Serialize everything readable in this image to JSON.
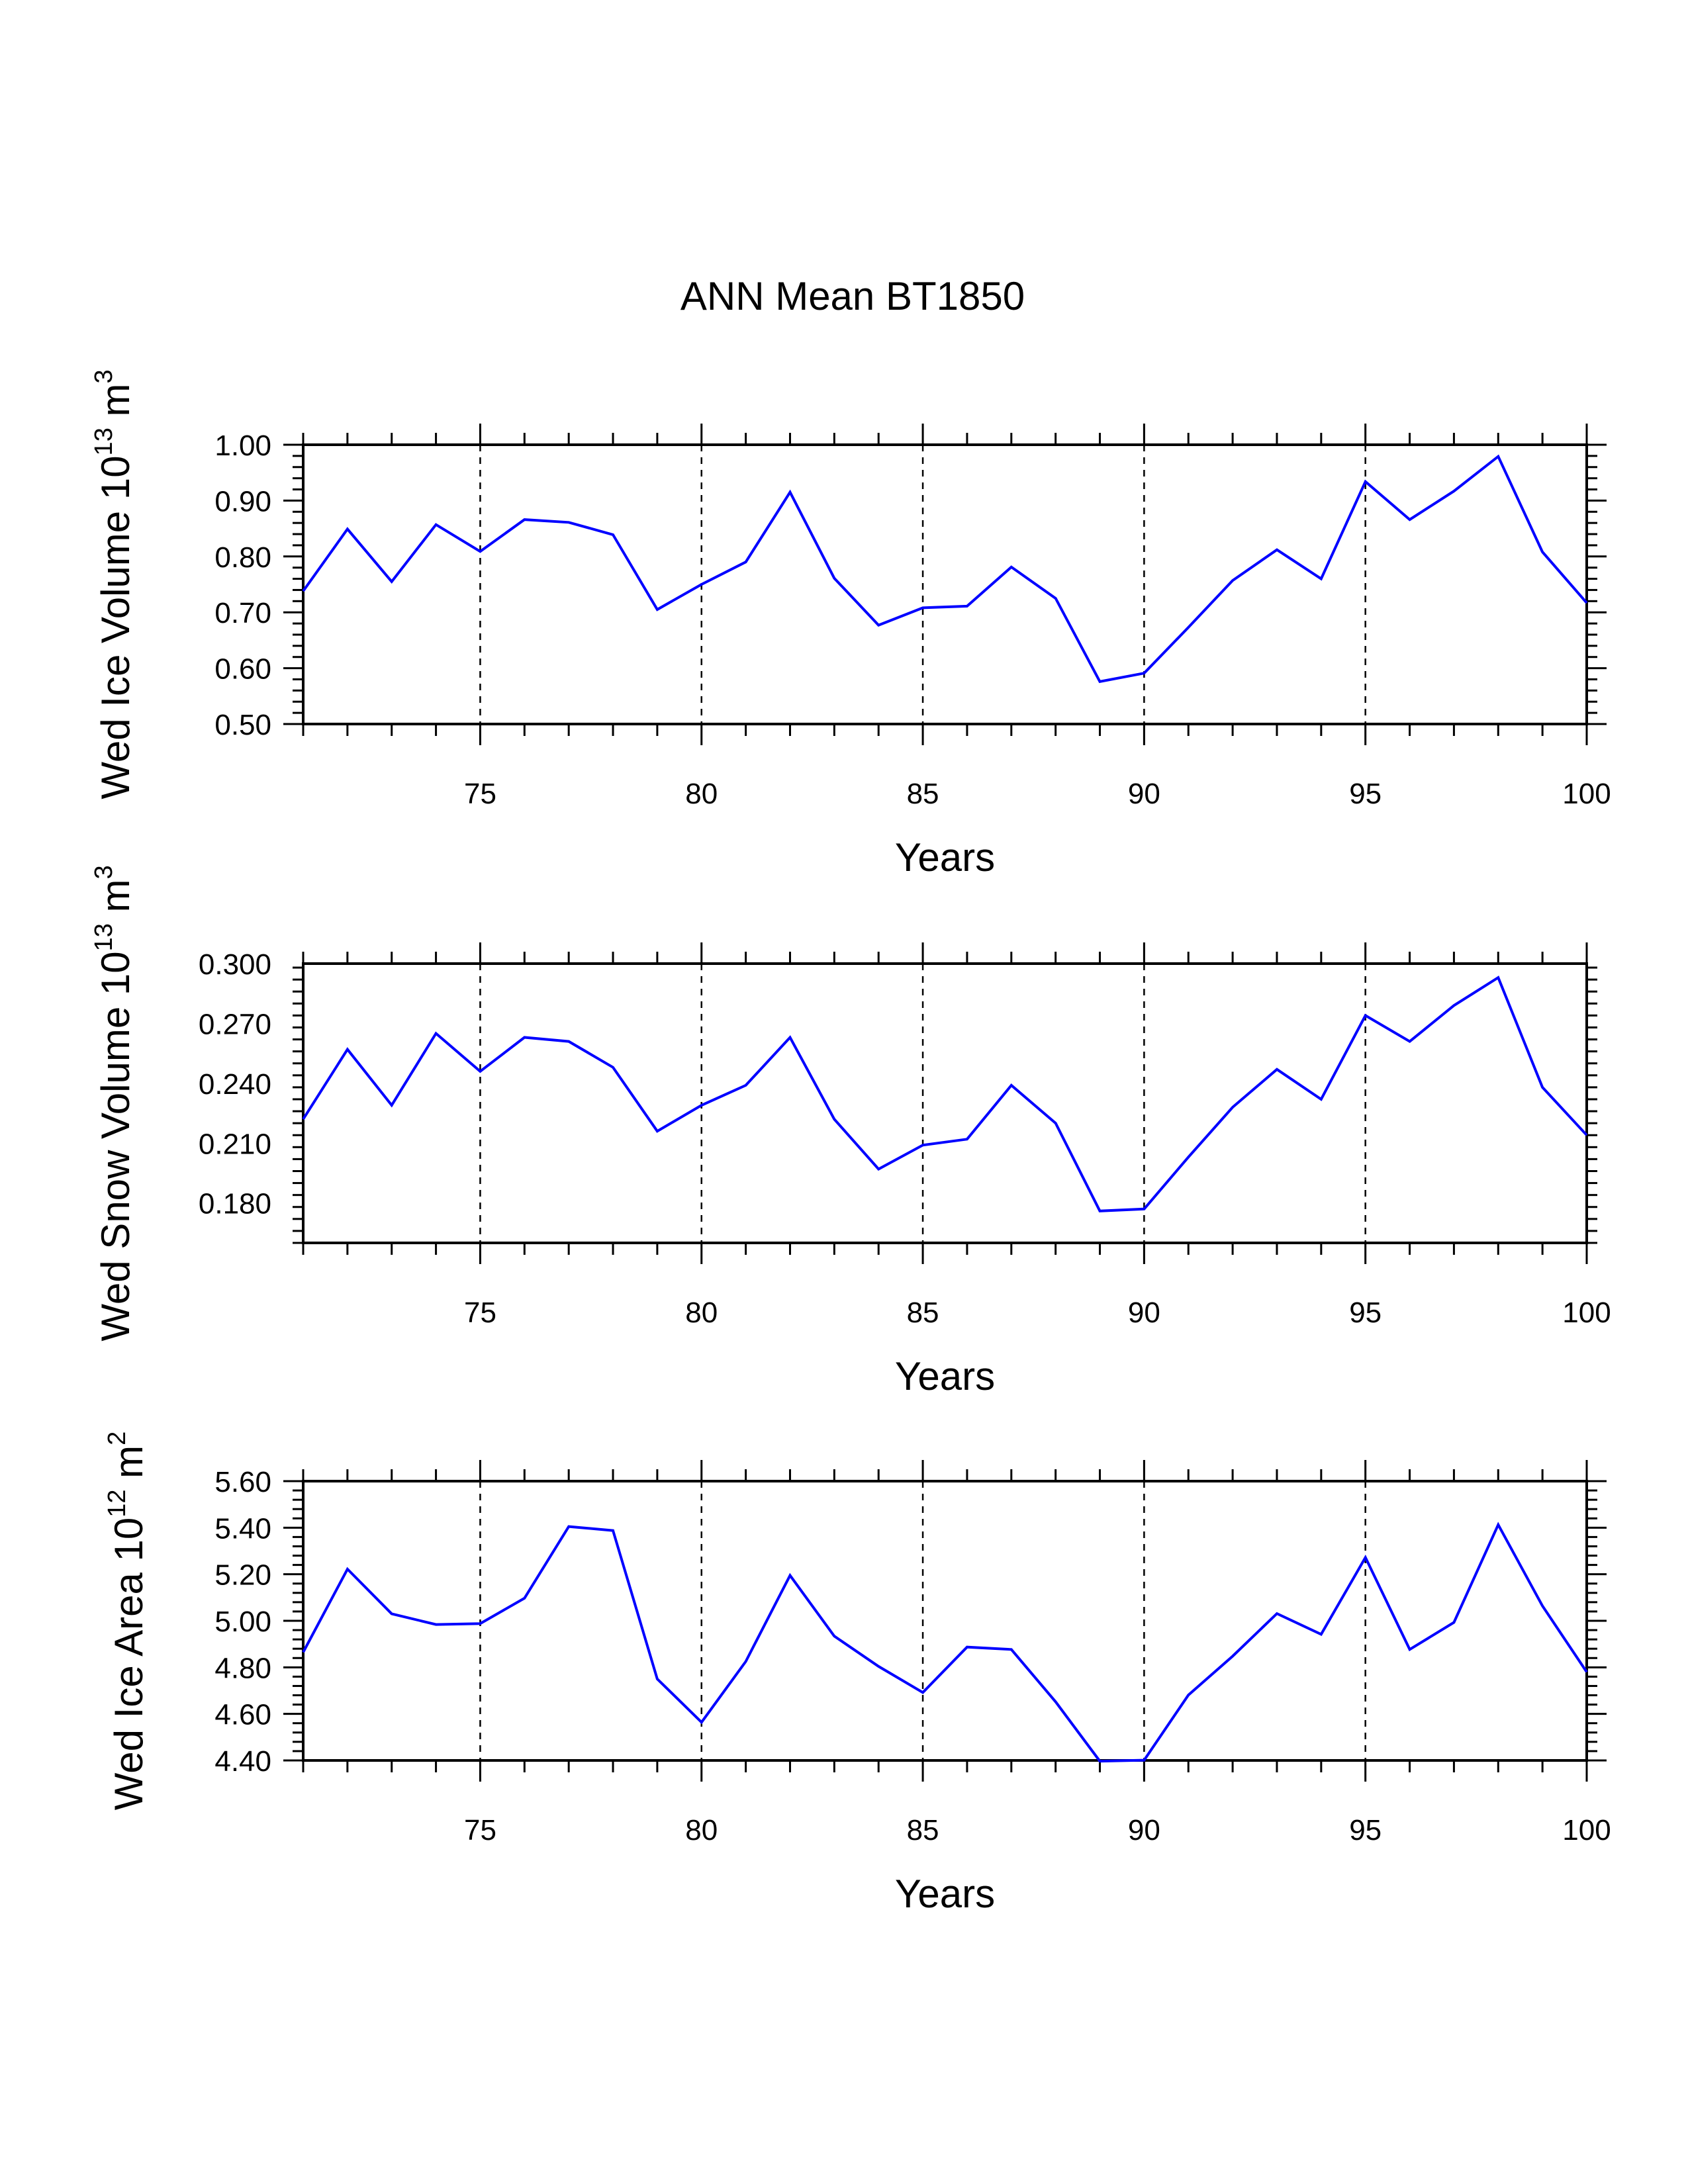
{
  "figure": {
    "title": "ANN Mean BT1850"
  },
  "colors": {
    "series": "#0000ff",
    "axis": "#000000",
    "background": "#ffffff"
  },
  "chart_data": [
    {
      "type": "line",
      "title": "ANN Mean BT1850",
      "xlabel": "Years",
      "ylabel": "Wed Ice Volume 10^13 m^3",
      "ylabel_parts": {
        "main": "Wed Ice Volume 10",
        "exp": "13",
        "unit": " m",
        "unit_exp": "3"
      },
      "xlim": [
        71,
        100
      ],
      "ylim": [
        0.5,
        1.0
      ],
      "xticks": [
        75,
        80,
        85,
        90,
        95,
        100
      ],
      "xtick_labels": [
        "75",
        "80",
        "85",
        "90",
        "95",
        "100"
      ],
      "yticks": [
        0.5,
        0.6,
        0.7,
        0.8,
        0.9,
        1.0
      ],
      "ytick_labels": [
        "0.50",
        "0.60",
        "0.70",
        "0.80",
        "0.90",
        "1.00"
      ],
      "grid": "vertical dashed lines at major x ticks",
      "series": [
        {
          "color": "#0000ff",
          "x": [
            71,
            72,
            73,
            74,
            75,
            76,
            77,
            78,
            79,
            80,
            81,
            82,
            83,
            84,
            85,
            86,
            87,
            88,
            89,
            90,
            91,
            92,
            93,
            94,
            95,
            96,
            97,
            98,
            99,
            100
          ],
          "y": [
            0.738,
            0.849,
            0.755,
            0.857,
            0.809,
            0.866,
            0.861,
            0.839,
            0.705,
            0.75,
            0.79,
            0.915,
            0.761,
            0.677,
            0.708,
            0.711,
            0.781,
            0.725,
            0.576,
            0.591,
            0.673,
            0.757,
            0.812,
            0.76,
            0.934,
            0.866,
            0.917,
            0.979,
            0.808,
            0.717
          ]
        }
      ]
    },
    {
      "type": "line",
      "xlabel": "Years",
      "ylabel": "Wed Snow Volume 10^13 m^3",
      "ylabel_parts": {
        "main": "Wed Snow Volume 10",
        "exp": "13",
        "unit": " m",
        "unit_exp": "3"
      },
      "xlim": [
        71,
        100
      ],
      "ylim": [
        0.16,
        0.3
      ],
      "xticks": [
        75,
        80,
        85,
        90,
        95,
        100
      ],
      "xtick_labels": [
        "75",
        "80",
        "85",
        "90",
        "95",
        "100"
      ],
      "yticks": [
        0.18,
        0.21,
        0.24,
        0.27,
        0.3
      ],
      "ytick_labels": [
        "0.180",
        "0.210",
        "0.240",
        "0.270",
        "0.300"
      ],
      "grid": "vertical dashed lines at major x ticks",
      "series": [
        {
          "color": "#0000ff",
          "x": [
            71,
            72,
            73,
            74,
            75,
            76,
            77,
            78,
            79,
            80,
            81,
            82,
            83,
            84,
            85,
            86,
            87,
            88,
            89,
            90,
            91,
            92,
            93,
            94,
            95,
            96,
            97,
            98,
            99,
            100
          ],
          "y": [
            0.222,
            0.257,
            0.229,
            0.265,
            0.246,
            0.263,
            0.261,
            0.248,
            0.216,
            0.229,
            0.239,
            0.263,
            0.222,
            0.197,
            0.209,
            0.212,
            0.239,
            0.22,
            0.176,
            0.177,
            0.203,
            0.228,
            0.247,
            0.232,
            0.274,
            0.261,
            0.279,
            0.293,
            0.238,
            0.214
          ]
        }
      ]
    },
    {
      "type": "line",
      "xlabel": "Years",
      "ylabel": "Wed Ice Area 10^12 m^2",
      "ylabel_parts": {
        "main": "Wed Ice Area 10",
        "exp": "12",
        "unit": " m",
        "unit_exp": "2"
      },
      "xlim": [
        71,
        100
      ],
      "ylim": [
        4.4,
        5.6
      ],
      "xticks": [
        75,
        80,
        85,
        90,
        95,
        100
      ],
      "xtick_labels": [
        "75",
        "80",
        "85",
        "90",
        "95",
        "100"
      ],
      "yticks": [
        4.4,
        4.6,
        4.8,
        5.0,
        5.2,
        5.4,
        5.6
      ],
      "ytick_labels": [
        "4.40",
        "4.60",
        "4.80",
        "5.00",
        "5.20",
        "5.40",
        "5.60"
      ],
      "grid": "vertical dashed lines at major x ticks",
      "series": [
        {
          "color": "#0000ff",
          "x": [
            71,
            72,
            73,
            74,
            75,
            76,
            77,
            78,
            79,
            80,
            81,
            82,
            83,
            84,
            85,
            86,
            87,
            88,
            89,
            90,
            91,
            92,
            93,
            94,
            95,
            96,
            97,
            98,
            99,
            100
          ],
          "y": [
            4.865,
            5.222,
            5.03,
            4.984,
            4.988,
            5.097,
            5.405,
            5.388,
            4.75,
            4.564,
            4.825,
            5.195,
            4.934,
            4.804,
            4.692,
            4.887,
            4.877,
            4.652,
            4.397,
            4.401,
            4.681,
            4.848,
            5.031,
            4.942,
            5.272,
            4.877,
            4.993,
            5.413,
            5.064,
            4.78
          ]
        }
      ]
    }
  ]
}
